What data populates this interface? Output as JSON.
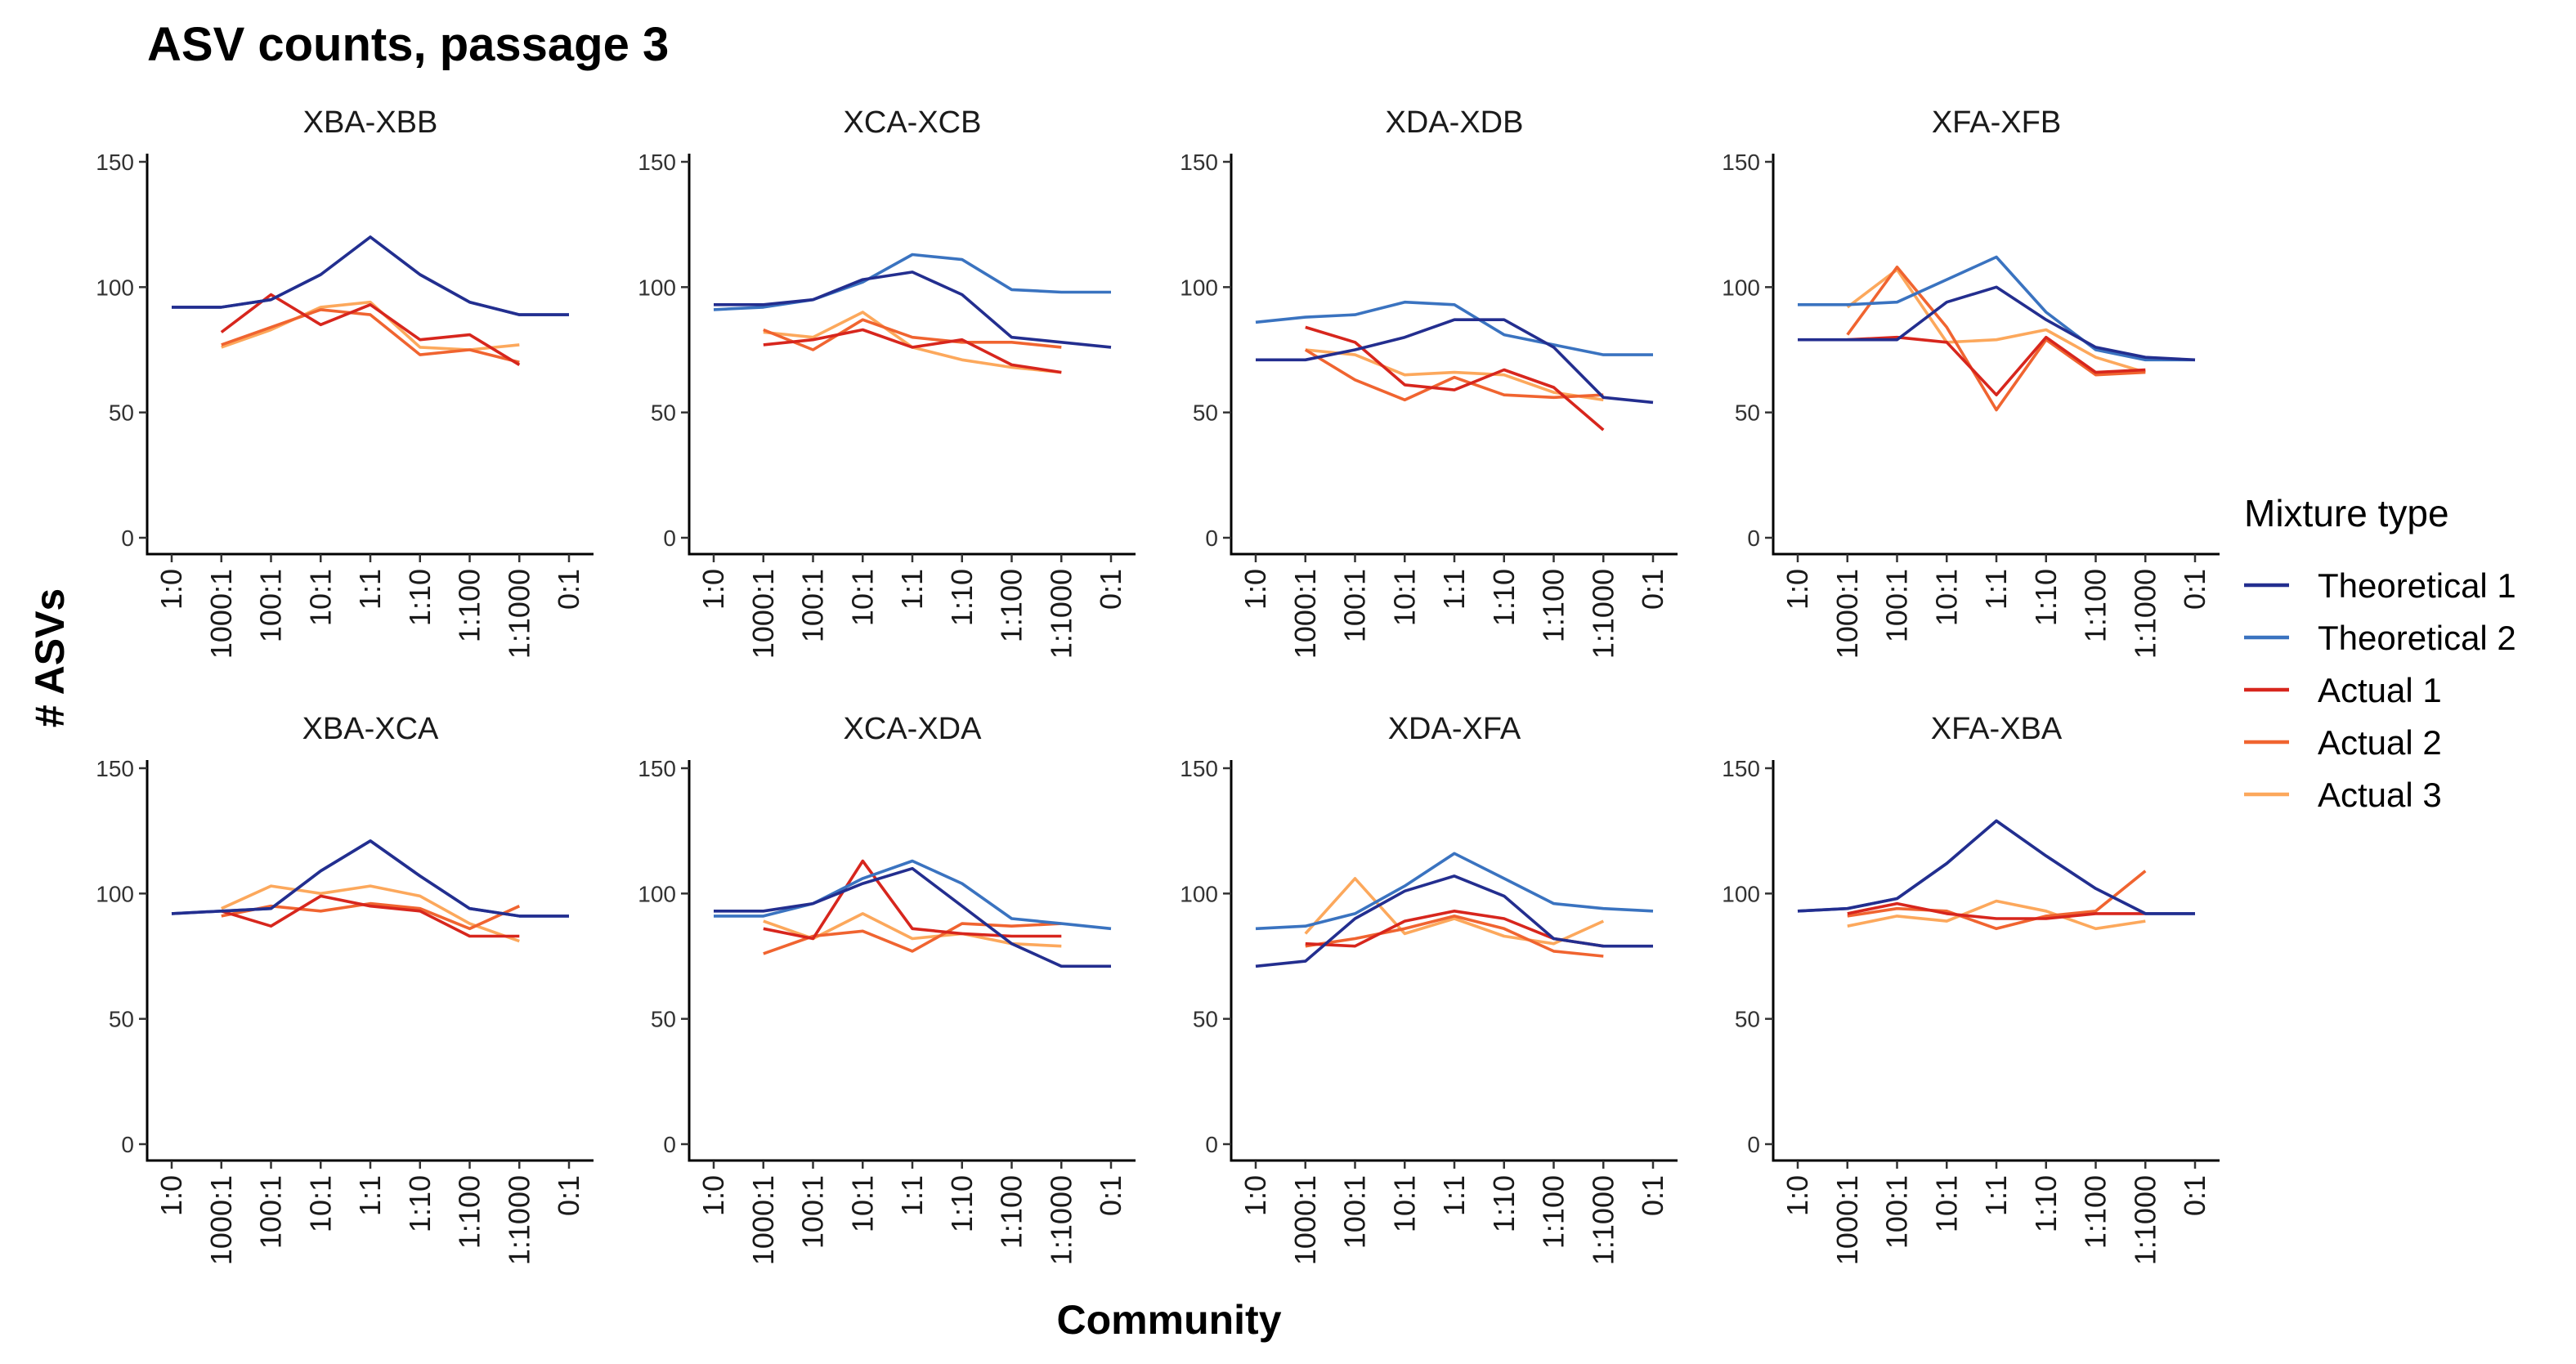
{
  "chart_data": {
    "type": "line",
    "title": "ASV counts, passage 3",
    "xlabel": "Community",
    "ylabel": "# ASVs",
    "ylim": [
      0,
      150
    ],
    "yticks": [
      0,
      50,
      100,
      150
    ],
    "categories": [
      "1:0",
      "1000:1",
      "100:1",
      "10:1",
      "1:1",
      "1:10",
      "1:100",
      "1:1000",
      "0:1"
    ],
    "legend": {
      "title": "Mixture type",
      "position": "right",
      "entries": [
        {
          "name": "Theoretical 1",
          "color": "#232e8f"
        },
        {
          "name": "Theoretical 2",
          "color": "#3a73c0"
        },
        {
          "name": "Actual 1",
          "color": "#d7261d"
        },
        {
          "name": "Actual 2",
          "color": "#f06430"
        },
        {
          "name": "Actual 3",
          "color": "#fca85c"
        }
      ]
    },
    "panels": [
      {
        "title": "XBA-XBB",
        "series": [
          {
            "name": "Theoretical 1",
            "values": [
              92,
              92,
              95,
              105,
              120,
              105,
              94,
              89,
              89
            ]
          },
          {
            "name": "Theoretical 2",
            "values": [
              92,
              92,
              95,
              105,
              120,
              105,
              94,
              89,
              89
            ]
          },
          {
            "name": "Actual 1",
            "values": [
              null,
              82,
              97,
              85,
              93,
              79,
              81,
              69,
              null
            ]
          },
          {
            "name": "Actual 2",
            "values": [
              null,
              77,
              84,
              91,
              89,
              73,
              75,
              70,
              null
            ]
          },
          {
            "name": "Actual 3",
            "values": [
              null,
              76,
              83,
              92,
              94,
              76,
              75,
              77,
              null
            ]
          }
        ]
      },
      {
        "title": "XCA-XCB",
        "series": [
          {
            "name": "Theoretical 1",
            "values": [
              93,
              93,
              95,
              103,
              106,
              97,
              80,
              78,
              76
            ]
          },
          {
            "name": "Theoretical 2",
            "values": [
              91,
              92,
              95,
              102,
              113,
              111,
              99,
              98,
              98
            ]
          },
          {
            "name": "Actual 1",
            "values": [
              null,
              77,
              79,
              83,
              76,
              79,
              69,
              66,
              null
            ]
          },
          {
            "name": "Actual 2",
            "values": [
              null,
              83,
              75,
              87,
              80,
              78,
              78,
              76,
              null
            ]
          },
          {
            "name": "Actual 3",
            "values": [
              null,
              82,
              80,
              90,
              76,
              71,
              68,
              66,
              null
            ]
          }
        ]
      },
      {
        "title": "XDA-XDB",
        "series": [
          {
            "name": "Theoretical 1",
            "values": [
              71,
              71,
              75,
              80,
              87,
              87,
              76,
              56,
              54
            ]
          },
          {
            "name": "Theoretical 2",
            "values": [
              86,
              88,
              89,
              94,
              93,
              81,
              77,
              73,
              73
            ]
          },
          {
            "name": "Actual 1",
            "values": [
              null,
              84,
              78,
              61,
              59,
              67,
              60,
              43,
              null
            ]
          },
          {
            "name": "Actual 2",
            "values": [
              null,
              75,
              63,
              55,
              64,
              57,
              56,
              57,
              null
            ]
          },
          {
            "name": "Actual 3",
            "values": [
              null,
              75,
              73,
              65,
              66,
              65,
              58,
              55,
              null
            ]
          }
        ]
      },
      {
        "title": "XFA-XFB",
        "series": [
          {
            "name": "Theoretical 1",
            "values": [
              79,
              79,
              79,
              94,
              100,
              87,
              76,
              72,
              71
            ]
          },
          {
            "name": "Theoretical 2",
            "values": [
              93,
              93,
              94,
              103,
              112,
              90,
              75,
              71,
              71
            ]
          },
          {
            "name": "Actual 1",
            "values": [
              null,
              79,
              80,
              78,
              57,
              80,
              66,
              67,
              null
            ]
          },
          {
            "name": "Actual 2",
            "values": [
              null,
              81,
              108,
              84,
              51,
              79,
              65,
              66,
              null
            ]
          },
          {
            "name": "Actual 3",
            "values": [
              null,
              92,
              107,
              78,
              79,
              83,
              72,
              66,
              null
            ]
          }
        ]
      },
      {
        "title": "XBA-XCA",
        "series": [
          {
            "name": "Theoretical 1",
            "values": [
              92,
              93,
              94,
              109,
              121,
              107,
              94,
              91,
              91
            ]
          },
          {
            "name": "Theoretical 2",
            "values": [
              92,
              93,
              94,
              109,
              121,
              107,
              94,
              91,
              91
            ]
          },
          {
            "name": "Actual 1",
            "values": [
              null,
              93,
              87,
              99,
              95,
              93,
              83,
              83,
              null
            ]
          },
          {
            "name": "Actual 2",
            "values": [
              null,
              91,
              95,
              93,
              96,
              94,
              86,
              95,
              null
            ]
          },
          {
            "name": "Actual 3",
            "values": [
              null,
              94,
              103,
              100,
              103,
              99,
              88,
              81,
              null
            ]
          }
        ]
      },
      {
        "title": "XCA-XDA",
        "series": [
          {
            "name": "Theoretical 1",
            "values": [
              93,
              93,
              96,
              104,
              110,
              95,
              80,
              71,
              71
            ]
          },
          {
            "name": "Theoretical 2",
            "values": [
              91,
              91,
              96,
              106,
              113,
              104,
              90,
              88,
              86
            ]
          },
          {
            "name": "Actual 1",
            "values": [
              null,
              86,
              82,
              113,
              86,
              84,
              83,
              83,
              null
            ]
          },
          {
            "name": "Actual 2",
            "values": [
              null,
              76,
              83,
              85,
              77,
              88,
              87,
              88,
              null
            ]
          },
          {
            "name": "Actual 3",
            "values": [
              null,
              89,
              82,
              92,
              82,
              84,
              80,
              79,
              null
            ]
          }
        ]
      },
      {
        "title": "XDA-XFA",
        "series": [
          {
            "name": "Theoretical 1",
            "values": [
              71,
              73,
              90,
              101,
              107,
              99,
              82,
              79,
              79
            ]
          },
          {
            "name": "Theoretical 2",
            "values": [
              86,
              87,
              92,
              103,
              116,
              106,
              96,
              94,
              93
            ]
          },
          {
            "name": "Actual 1",
            "values": [
              null,
              80,
              79,
              89,
              93,
              90,
              82,
              79,
              null
            ]
          },
          {
            "name": "Actual 2",
            "values": [
              null,
              79,
              82,
              86,
              91,
              86,
              77,
              75,
              null
            ]
          },
          {
            "name": "Actual 3",
            "values": [
              null,
              84,
              106,
              84,
              90,
              83,
              80,
              89,
              null
            ]
          }
        ]
      },
      {
        "title": "XFA-XBA",
        "series": [
          {
            "name": "Theoretical 1",
            "values": [
              93,
              94,
              98,
              112,
              129,
              115,
              102,
              92,
              92
            ]
          },
          {
            "name": "Theoretical 2",
            "values": [
              93,
              94,
              98,
              112,
              129,
              115,
              102,
              92,
              92
            ]
          },
          {
            "name": "Actual 1",
            "values": [
              null,
              92,
              96,
              92,
              90,
              90,
              92,
              92,
              null
            ]
          },
          {
            "name": "Actual 2",
            "values": [
              null,
              91,
              94,
              93,
              86,
              91,
              93,
              109,
              null
            ]
          },
          {
            "name": "Actual 3",
            "values": [
              null,
              87,
              91,
              89,
              97,
              93,
              86,
              89,
              null
            ]
          }
        ]
      }
    ]
  }
}
